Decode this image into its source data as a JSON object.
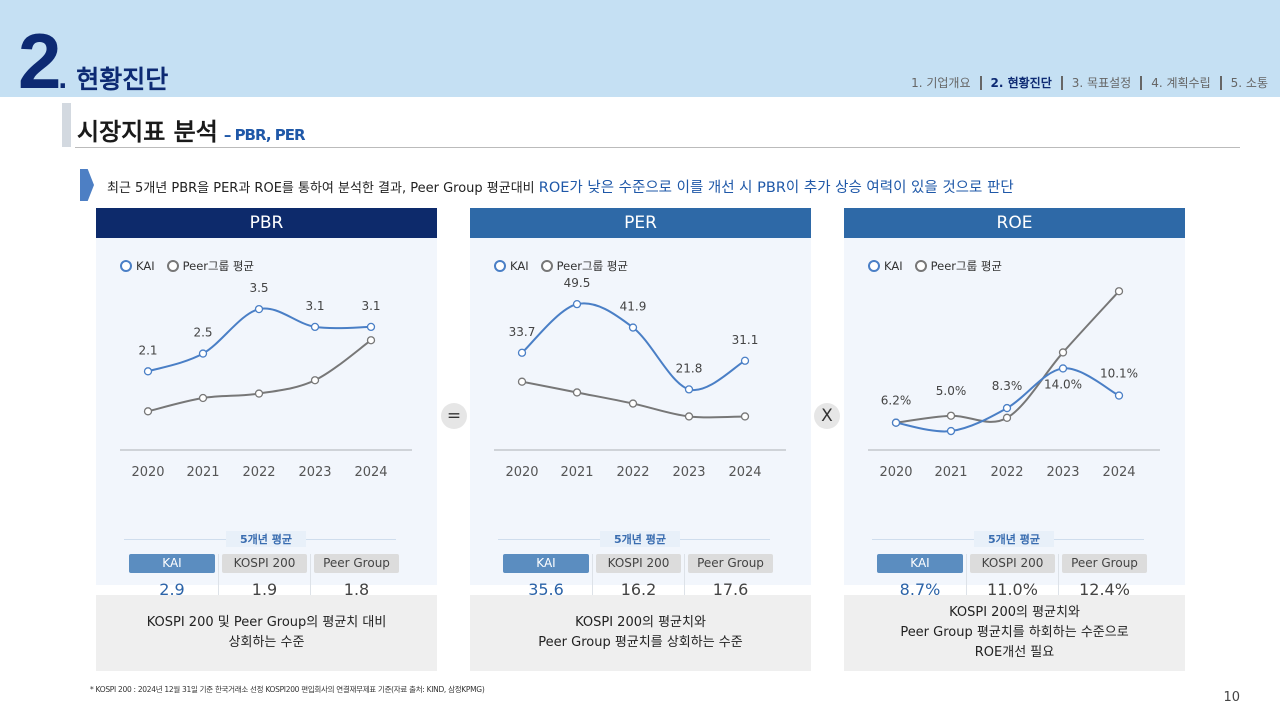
{
  "header": {
    "section_number": "2",
    "section_title": ". 현황진단",
    "nav": [
      {
        "label": "1. 기업개요",
        "active": false
      },
      {
        "label": "2. 현황진단",
        "active": true
      },
      {
        "label": "3. 목표설정",
        "active": false
      },
      {
        "label": "4. 계획수립",
        "active": false
      },
      {
        "label": "5. 소통",
        "active": false
      }
    ]
  },
  "title": {
    "main": "시장지표 분석",
    "sub": "– PBR, PER"
  },
  "summary": {
    "text": "최근 5개년 PBR을 PER과 ROE를 통하여 분석한 결과, Peer Group 평균대비 ",
    "highlight": "ROE가 낮은 수준으로 이를 개선 시 PBR이 추가 상승 여력이 있을 것으로 판단"
  },
  "operators": [
    "=",
    "X"
  ],
  "colors": {
    "kai": "#4a7fc6",
    "peer": "#777777",
    "pbr_header": "#0d2a6b",
    "header": "#2e69a7"
  },
  "panels": [
    {
      "title": "PBR",
      "legend": [
        "KAI",
        "Peer그룹 평균"
      ],
      "avg_label": "5개년 평균",
      "cols": [
        "KAI",
        "KOSPI 200",
        "Peer Group"
      ],
      "vals": [
        "2.9",
        "1.9",
        "1.8"
      ],
      "note": "KOSPI 200 및 Peer Group의 평균치 대비\n상회하는 수준"
    },
    {
      "title": "PER",
      "legend": [
        "KAI",
        "Peer그룹 평균"
      ],
      "avg_label": "5개년 평균",
      "cols": [
        "KAI",
        "KOSPI 200",
        "Peer Group"
      ],
      "vals": [
        "35.6",
        "16.2",
        "17.6"
      ],
      "note": "KOSPI 200의 평균치와\nPeer Group 평균치를 상회하는 수준"
    },
    {
      "title": "ROE",
      "legend": [
        "KAI",
        "Peer그룹 평균"
      ],
      "avg_label": "5개년 평균",
      "cols": [
        "KAI",
        "KOSPI 200",
        "Peer Group"
      ],
      "vals": [
        "8.7%",
        "11.0%",
        "12.4%"
      ],
      "note": "KOSPI 200의 평균치와\nPeer Group 평균치를 하회하는 수준으로\nROE개선 필요"
    }
  ],
  "chart_data": [
    {
      "type": "line",
      "title": "PBR",
      "categories": [
        "2020",
        "2021",
        "2022",
        "2023",
        "2024"
      ],
      "series": [
        {
          "name": "KAI",
          "values": [
            2.1,
            2.5,
            3.5,
            3.1,
            3.1
          ],
          "labels": [
            "2.1",
            "2.5",
            "3.5",
            "3.1",
            "3.1"
          ]
        },
        {
          "name": "Peer그룹 평균",
          "values": [
            1.2,
            1.5,
            1.6,
            1.9,
            2.8
          ]
        }
      ],
      "ylim": [
        0.6,
        4.2
      ],
      "grid": false,
      "legend": "top-left"
    },
    {
      "type": "line",
      "title": "PER",
      "categories": [
        "2020",
        "2021",
        "2022",
        "2023",
        "2024"
      ],
      "series": [
        {
          "name": "KAI",
          "values": [
            33.7,
            49.5,
            41.9,
            21.8,
            31.1
          ],
          "labels": [
            "33.7",
            "49.5",
            "41.9",
            "21.8",
            "31.1"
          ]
        },
        {
          "name": "Peer그룹 평균",
          "values": [
            24.3,
            20.8,
            17.2,
            13.0,
            13.0
          ]
        }
      ],
      "ylim": [
        6,
        58
      ],
      "grid": false,
      "legend": "top-left"
    },
    {
      "type": "line",
      "title": "ROE",
      "categories": [
        "2020",
        "2021",
        "2022",
        "2023",
        "2024"
      ],
      "series": [
        {
          "name": "KAI",
          "values": [
            6.2,
            5.0,
            8.3,
            14.0,
            10.1
          ],
          "labels": [
            "6.2%",
            "5.0%",
            "8.3%",
            "14.0%",
            "10.1%"
          ]
        },
        {
          "name": "Peer그룹 평균",
          "values": [
            6.2,
            7.2,
            6.9,
            16.3,
            25.1
          ]
        }
      ],
      "ylim": [
        4,
        27
      ],
      "grid": false,
      "legend": "top-left"
    }
  ],
  "footnote": "* KOSPI 200 : 2024년 12월 31일 기준 한국거래소 선정 KOSPI200 편입회사의 연결재무제표 기준(자료 출처: KIND, 삼정KPMG)",
  "page_number": "10"
}
